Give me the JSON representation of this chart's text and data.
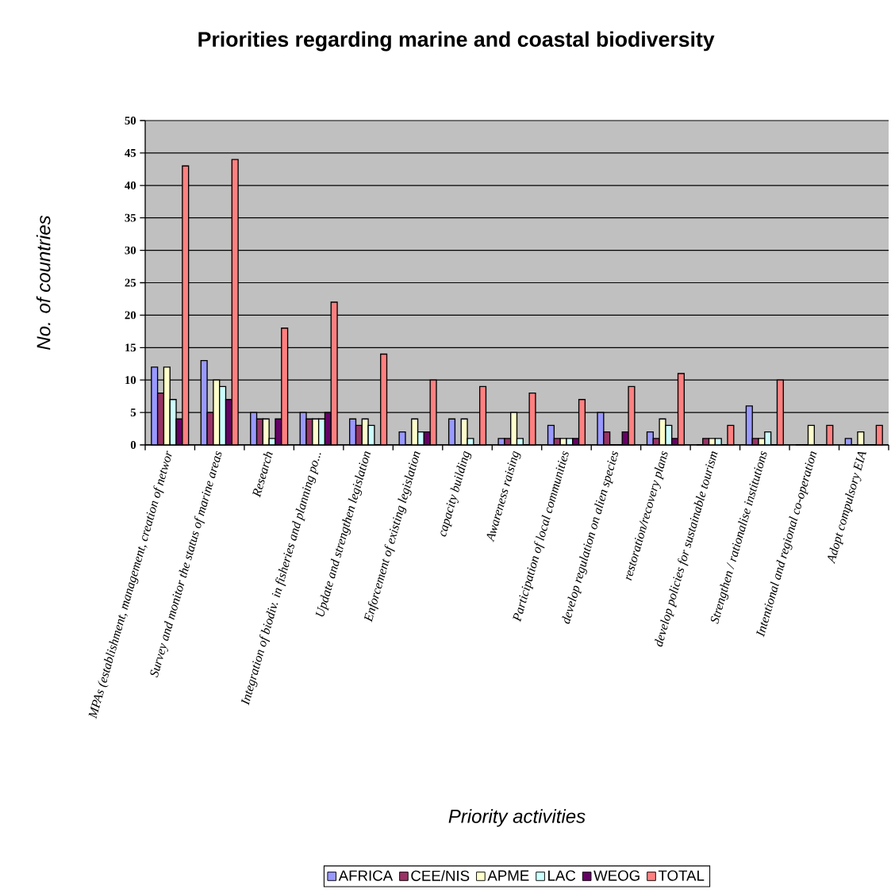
{
  "chart_data": {
    "type": "bar",
    "title": "Priorities regarding marine and coastal biodiversity",
    "xlabel": "Priority activities",
    "ylabel": "No. of countries",
    "categories": [
      "MPAs (establishment, management, creation of networ",
      "Survey and monitor the status of marine areas",
      "Research",
      "Integration of biodiv. in fisheries and planning po...",
      "Update and strengthen legislation",
      "Enforcement of existing legislation",
      "capacity building",
      "Awareness raising",
      "Participation of local communities",
      "develop regulation on alien species",
      "restoration/recovery plans",
      "develop policies for sustainable tourism",
      "Strengthen / rationalise institutions",
      "Intentional and regional co-operation",
      "Adopt compulsory EIA"
    ],
    "series": [
      {
        "name": "AFRICA",
        "color": "#9999ff",
        "values": [
          12,
          13,
          5,
          5,
          4,
          2,
          4,
          1,
          3,
          5,
          2,
          0,
          6,
          0,
          1
        ]
      },
      {
        "name": "CEE/NIS",
        "color": "#993366",
        "values": [
          8,
          5,
          4,
          4,
          3,
          0,
          0,
          1,
          1,
          2,
          1,
          1,
          1,
          0,
          0
        ]
      },
      {
        "name": "APME",
        "color": "#ffffcc",
        "values": [
          12,
          10,
          4,
          4,
          4,
          4,
          4,
          5,
          1,
          0,
          4,
          1,
          1,
          3,
          2
        ]
      },
      {
        "name": "LAC",
        "color": "#ccffff",
        "values": [
          7,
          9,
          1,
          4,
          3,
          2,
          1,
          1,
          1,
          0,
          3,
          1,
          2,
          0,
          0
        ]
      },
      {
        "name": "WEOG",
        "color": "#660066",
        "values": [
          4,
          7,
          4,
          5,
          0,
          2,
          0,
          0,
          1,
          2,
          1,
          0,
          0,
          0,
          0
        ]
      },
      {
        "name": "TOTAL",
        "color": "#ff8080",
        "values": [
          43,
          44,
          18,
          22,
          14,
          10,
          9,
          8,
          7,
          9,
          11,
          3,
          10,
          3,
          3
        ]
      }
    ],
    "ylim": [
      0,
      50
    ],
    "yticks": [
      0,
      5,
      10,
      15,
      20,
      25,
      30,
      35,
      40,
      45,
      50
    ],
    "grid": "y",
    "legend": "bottom"
  }
}
